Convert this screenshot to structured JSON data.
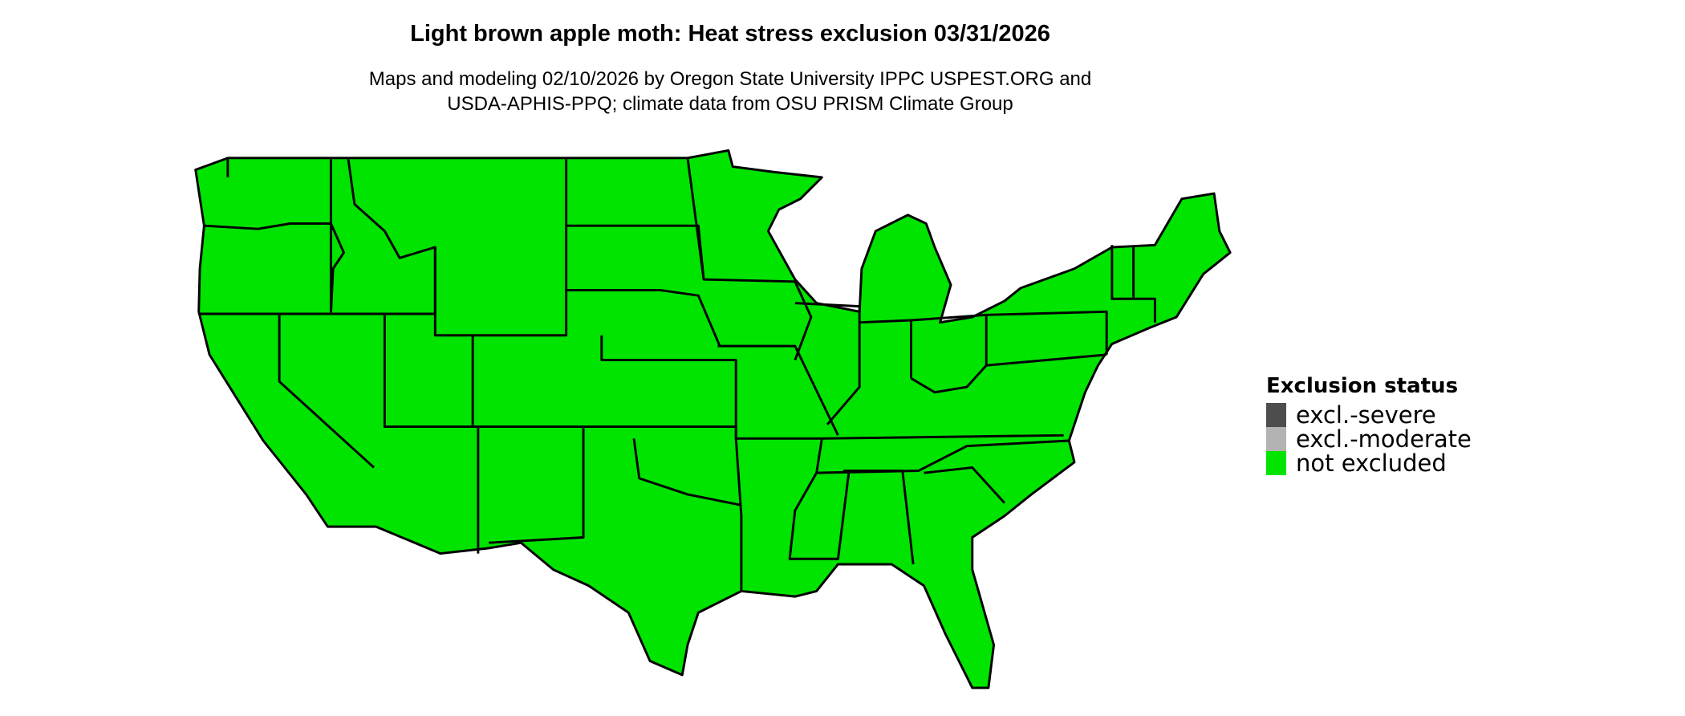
{
  "title": "Light brown apple moth: Heat stress exclusion 03/31/2026",
  "subtitle_line1": "Maps and modeling 02/10/2026 by Oregon State University IPPC USPEST.ORG and",
  "subtitle_line2": "USDA-APHIS-PPQ; climate data from OSU PRISM Climate Group",
  "map": {
    "region": "Contiguous United States",
    "fill_status": "not excluded",
    "fill_color": "#00e400",
    "border_color": "#000000"
  },
  "legend": {
    "title": "Exclusion status",
    "items": [
      {
        "label": "excl.-severe",
        "color": "#4d4d4d"
      },
      {
        "label": "excl.-moderate",
        "color": "#b3b3b3"
      },
      {
        "label": "not excluded",
        "color": "#00e400"
      }
    ]
  }
}
